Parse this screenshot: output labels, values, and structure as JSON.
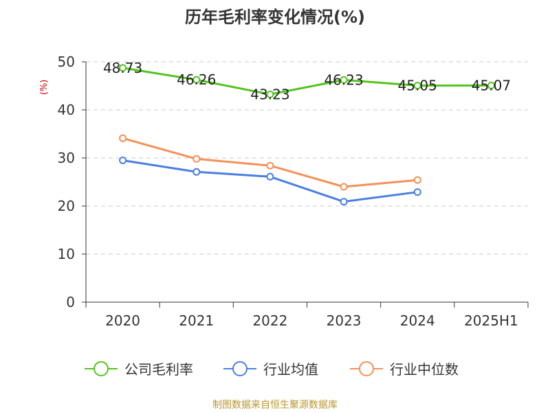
{
  "chart_data": {
    "type": "line",
    "title": "历年毛利率变化情况(%)",
    "ylabel": "(%)",
    "xlabel": "",
    "categories": [
      "2020",
      "2021",
      "2022",
      "2023",
      "2024",
      "2025H1"
    ],
    "ylim": [
      0,
      50
    ],
    "yticks": [
      0,
      10,
      20,
      30,
      40,
      50
    ],
    "grid": true,
    "legend_position": "bottom",
    "series": [
      {
        "name": "公司毛利率",
        "color": "#52c41a",
        "values": [
          48.73,
          46.26,
          43.23,
          46.23,
          45.05,
          45.07
        ],
        "labels": [
          "48.73",
          "46.26",
          "43.23",
          "46.23",
          "45.05",
          "45.07"
        ]
      },
      {
        "name": "行业均值",
        "color": "#4a7fe0",
        "values": [
          29.5,
          27.1,
          26.1,
          20.9,
          22.9,
          null
        ]
      },
      {
        "name": "行业中位数",
        "color": "#f59057",
        "values": [
          34.1,
          29.8,
          28.4,
          24.0,
          25.4,
          null
        ]
      }
    ]
  },
  "footer": {
    "source": "制图数据来自恒生聚源数据库"
  }
}
